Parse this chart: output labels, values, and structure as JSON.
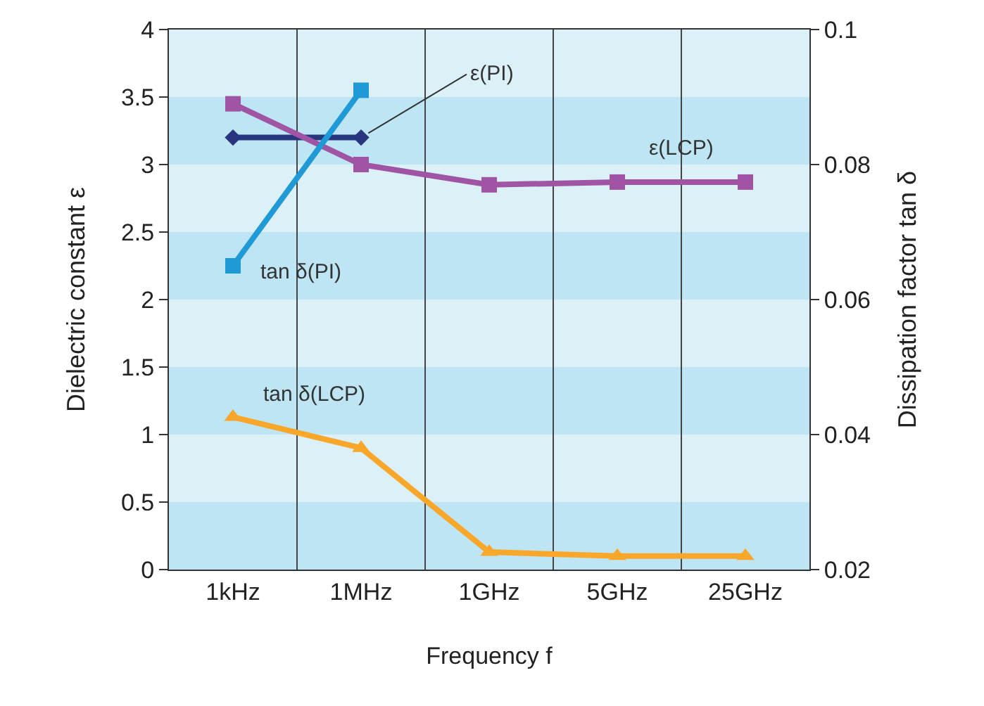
{
  "chart_data": {
    "type": "line",
    "categories": [
      "1kHz",
      "1MHz",
      "1GHz",
      "5GHz",
      "25GHz"
    ],
    "xlabel": "Frequency f",
    "ylabel": "Dielectric constant ε",
    "y2label": "Dissipation factor tan δ",
    "ylim": [
      0,
      4
    ],
    "yticks": [
      0,
      0.5,
      1,
      1.5,
      2,
      2.5,
      3,
      3.5,
      4
    ],
    "y2lim": [
      0.02,
      0.1
    ],
    "y2ticks": [
      0.02,
      0.04,
      0.06,
      0.08,
      0.1
    ],
    "grid": "x",
    "legend": false,
    "line_style": "solid",
    "bands": [
      {
        "axis": "y",
        "from": 0,
        "to": 0.5,
        "color": "#bee5f3"
      },
      {
        "axis": "y",
        "from": 1,
        "to": 1.5,
        "color": "#bee5f3"
      },
      {
        "axis": "y",
        "from": 2,
        "to": 2.5,
        "color": "#bee5f3"
      },
      {
        "axis": "y",
        "from": 3,
        "to": 3.5,
        "color": "#bee5f3"
      }
    ],
    "series": [
      {
        "name": "ε(PI)",
        "color": "#27367f",
        "marker": "diamond",
        "values": [
          3.2,
          3.2,
          null,
          null,
          null
        ]
      },
      {
        "name": "tan δ(PI)",
        "color": "#1f9ad6",
        "marker": "square",
        "axis": "y2",
        "values": [
          0.065,
          0.091,
          null,
          null,
          null
        ]
      },
      {
        "name": "ε(LCP)",
        "color": "#a054a4",
        "marker": "square",
        "values": [
          3.45,
          3.0,
          2.85,
          2.87,
          2.87
        ]
      },
      {
        "name": "tan δ(LCP)",
        "color": "#f9a72b",
        "marker": "triangle",
        "axis": "y2",
        "values": [
          0.0426,
          0.038,
          0.0226,
          0.022,
          0.022
        ]
      }
    ]
  }
}
